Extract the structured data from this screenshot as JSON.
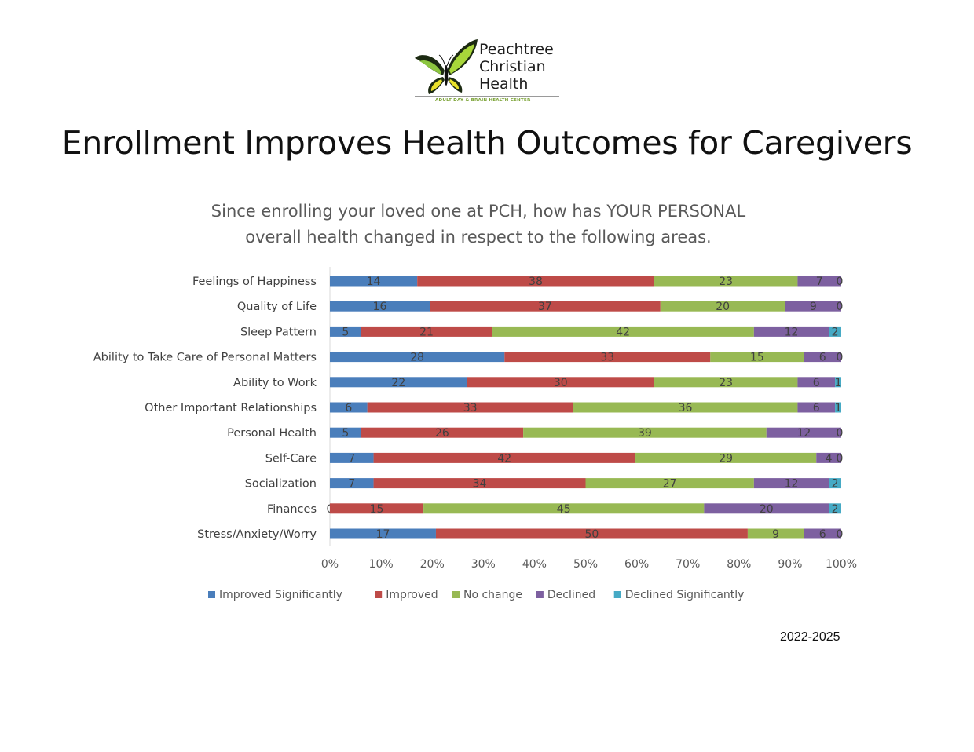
{
  "logo": {
    "brand_line1": "Peachtree",
    "brand_line2": "Christian",
    "brand_line3": "Health",
    "tagline": "ADULT DAY & BRAIN HEALTH CENTER"
  },
  "page_title": "Enrollment Improves Health Outcomes for Caregivers",
  "footer_years": "2022-2025",
  "chart_data": {
    "type": "bar",
    "orientation": "horizontal",
    "stacked": "percent",
    "title": "Since enrolling your loved one at PCH, how has YOUR PERSONAL overall health changed in respect to the following areas.",
    "title_lines": [
      "Since enrolling your loved one at PCH, how has YOUR PERSONAL",
      "overall health changed in respect to the following areas."
    ],
    "categories": [
      "Feelings of Happiness",
      "Quality of Life",
      "Sleep Pattern",
      "Ability to Take Care of Personal Matters",
      "Ability to Work",
      "Other Important Relationships",
      "Personal Health",
      "Self-Care",
      "Socialization",
      "Finances",
      "Stress/Anxiety/Worry"
    ],
    "series": [
      {
        "name": "Improved Significantly",
        "color": "#4a7ebb",
        "values": [
          14,
          16,
          5,
          28,
          22,
          6,
          5,
          7,
          7,
          0,
          17
        ]
      },
      {
        "name": "Improved",
        "color": "#be4b48",
        "values": [
          38,
          37,
          21,
          33,
          30,
          33,
          26,
          42,
          34,
          15,
          50
        ]
      },
      {
        "name": "No change",
        "color": "#98b954",
        "values": [
          23,
          20,
          42,
          15,
          23,
          36,
          39,
          29,
          27,
          45,
          9
        ]
      },
      {
        "name": "Declined",
        "color": "#7d60a0",
        "values": [
          7,
          9,
          12,
          6,
          6,
          6,
          12,
          4,
          12,
          20,
          6
        ]
      },
      {
        "name": "Declined Significantly",
        "color": "#46aac5",
        "values": [
          0,
          0,
          2,
          0,
          1,
          1,
          0,
          0,
          2,
          2,
          0
        ]
      }
    ],
    "x_ticks": [
      "0%",
      "10%",
      "20%",
      "30%",
      "40%",
      "50%",
      "60%",
      "70%",
      "80%",
      "90%",
      "100%"
    ],
    "xlim": [
      0,
      100
    ],
    "grid": false,
    "legend_position": "bottom",
    "label_color": "#404040"
  }
}
